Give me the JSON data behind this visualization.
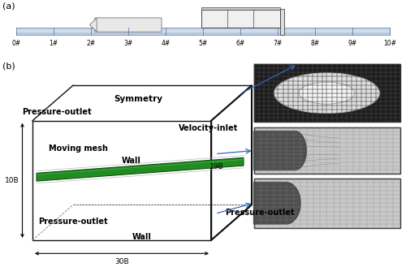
{
  "fig_width": 5.0,
  "fig_height": 3.45,
  "dpi": 100,
  "bg_color": "#ffffff",
  "panel_a_label": "(a)",
  "panel_b_label": "(b)",
  "station_labels": [
    "0#",
    "1#",
    "2#",
    "3#",
    "4#",
    "5#",
    "6#",
    "7#",
    "8#",
    "9#",
    "10#"
  ],
  "track_color": "#b8c8e0",
  "track_border": "#8899aa",
  "train_body_color": "#e8e8e8",
  "train_border": "#777777",
  "green_train_color": "#228B22",
  "green_train_dark": "#145214",
  "green_highlight": "#44cc44",
  "arrow_color": "#3366bb",
  "box_line_color": "#111111",
  "dim_line_color": "#111111"
}
